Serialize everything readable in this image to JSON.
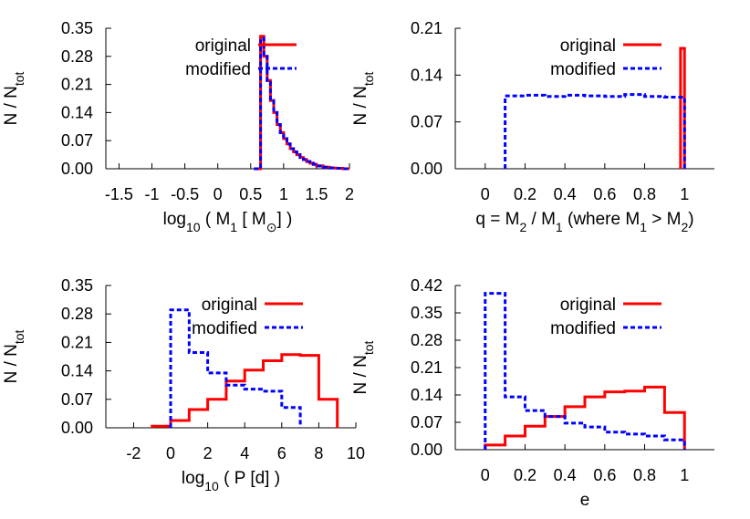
{
  "colors": {
    "original": "#ff0000",
    "modified": "#0000ff",
    "axis": "#000000"
  },
  "chart_data": [
    {
      "type": "histogram",
      "xlabel": {
        "base": "log",
        "sub": "10",
        "rest": " ( M",
        "sub2": "1",
        "rest2": " [ M",
        "sun": "⊙",
        "rest3": "] )"
      },
      "ylabel": {
        "base": "N / N",
        "sub": "tot"
      },
      "xlim": [
        -1.7,
        2.0
      ],
      "ylim": [
        0,
        0.35
      ],
      "xticks": [
        -1.5,
        -1,
        -0.5,
        0,
        0.5,
        1,
        1.5,
        2
      ],
      "xtick_labels": [
        "-1.5",
        "-1",
        "-0.5",
        "0",
        "0.5",
        "1",
        "1.5",
        "2"
      ],
      "yticks": [
        0,
        0.07,
        0.14,
        0.21,
        0.28,
        0.35
      ],
      "ytick_labels": [
        "0.00",
        "0.07",
        "0.14",
        "0.21",
        "0.28",
        "0.35"
      ],
      "legend": "top-right",
      "series": [
        {
          "name": "original",
          "dash": false,
          "edges": [
            0.55,
            0.65,
            0.7,
            0.75,
            0.8,
            0.85,
            0.9,
            0.95,
            1.0,
            1.05,
            1.1,
            1.15,
            1.2,
            1.25,
            1.3,
            1.35,
            1.4,
            1.45,
            1.5,
            1.6,
            1.7,
            1.8,
            1.9,
            2.0
          ],
          "values": [
            0.0,
            0.33,
            0.28,
            0.22,
            0.17,
            0.14,
            0.11,
            0.09,
            0.075,
            0.062,
            0.05,
            0.042,
            0.035,
            0.028,
            0.023,
            0.018,
            0.014,
            0.011,
            0.007,
            0.004,
            0.002,
            0.001,
            0.0
          ]
        },
        {
          "name": "modified",
          "dash": true,
          "edges": [
            0.55,
            0.65,
            0.7,
            0.75,
            0.8,
            0.85,
            0.9,
            0.95,
            1.0,
            1.05,
            1.1,
            1.15,
            1.2,
            1.25,
            1.3,
            1.35,
            1.4,
            1.45,
            1.5,
            1.6,
            1.7,
            1.8,
            1.9,
            2.0
          ],
          "values": [
            0.0,
            0.325,
            0.28,
            0.22,
            0.17,
            0.14,
            0.11,
            0.09,
            0.075,
            0.062,
            0.05,
            0.042,
            0.035,
            0.028,
            0.023,
            0.018,
            0.014,
            0.011,
            0.007,
            0.004,
            0.002,
            0.001,
            0.0
          ]
        }
      ]
    },
    {
      "type": "histogram",
      "xlabel": {
        "text": "q = M",
        "sub": "2",
        "rest": " / M",
        "sub2": "1",
        "rest2": " (where M",
        "sub3": "1",
        "rest3": " > M",
        "sub4": "2",
        "rest4": ")"
      },
      "ylabel": {
        "base": "N / N",
        "sub": "tot"
      },
      "xlim": [
        -0.15,
        1.15
      ],
      "ylim": [
        0,
        0.21
      ],
      "xticks": [
        0,
        0.2,
        0.4,
        0.6,
        0.8,
        1
      ],
      "xtick_labels": [
        "0",
        "0.2",
        "0.4",
        "0.6",
        "0.8",
        "1"
      ],
      "yticks": [
        0,
        0.07,
        0.14,
        0.21
      ],
      "ytick_labels": [
        "0.00",
        "0.07",
        "0.14",
        "0.21"
      ],
      "legend": "top-right",
      "series": [
        {
          "name": "original",
          "dash": false,
          "edges": [
            0.98,
            1.0
          ],
          "values": [
            0.18
          ]
        },
        {
          "name": "modified",
          "dash": true,
          "edges": [
            0.1,
            0.2,
            0.3,
            0.4,
            0.5,
            0.6,
            0.7,
            0.8,
            0.9,
            1.0
          ],
          "values": [
            0.109,
            0.11,
            0.108,
            0.11,
            0.109,
            0.108,
            0.111,
            0.108,
            0.107
          ]
        }
      ]
    },
    {
      "type": "histogram",
      "xlabel": {
        "base": "log",
        "sub": "10",
        "rest": " ( P [d] )"
      },
      "ylabel": {
        "base": "N / N",
        "sub": "tot"
      },
      "xlim": [
        -3.5,
        10
      ],
      "ylim": [
        0,
        0.35
      ],
      "xticks": [
        -2,
        0,
        2,
        4,
        6,
        8,
        10
      ],
      "xtick_labels": [
        "-2",
        "0",
        "2",
        "4",
        "6",
        "8",
        "10"
      ],
      "yticks": [
        0,
        0.07,
        0.14,
        0.21,
        0.28,
        0.35
      ],
      "ytick_labels": [
        "0.00",
        "0.07",
        "0.14",
        "0.21",
        "0.28",
        "0.35"
      ],
      "legend": "top-right",
      "series": [
        {
          "name": "original",
          "dash": false,
          "edges": [
            -1,
            0,
            1,
            2,
            3,
            4,
            5,
            6,
            7,
            8,
            9
          ],
          "values": [
            0.004,
            0.018,
            0.045,
            0.07,
            0.115,
            0.142,
            0.165,
            0.18,
            0.178,
            0.07
          ]
        },
        {
          "name": "modified",
          "dash": true,
          "edges": [
            0,
            1,
            2,
            3,
            4,
            5,
            6,
            7
          ],
          "values": [
            0.29,
            0.185,
            0.135,
            0.105,
            0.095,
            0.09,
            0.05
          ]
        }
      ]
    },
    {
      "type": "histogram",
      "xlabel": {
        "text": "e"
      },
      "ylabel": {
        "base": "N / N",
        "sub": "tot"
      },
      "xlim": [
        -0.15,
        1.15
      ],
      "ylim": [
        0,
        0.42
      ],
      "xticks": [
        0,
        0.2,
        0.4,
        0.6,
        0.8,
        1
      ],
      "xtick_labels": [
        "0",
        "0.2",
        "0.4",
        "0.6",
        "0.8",
        "1"
      ],
      "yticks": [
        0,
        0.07,
        0.14,
        0.21,
        0.28,
        0.35,
        0.42
      ],
      "ytick_labels": [
        "0.00",
        "0.07",
        "0.14",
        "0.21",
        "0.28",
        "0.35",
        "0.42"
      ],
      "legend": "top-right",
      "series": [
        {
          "name": "original",
          "dash": false,
          "edges": [
            0.0,
            0.1,
            0.2,
            0.3,
            0.4,
            0.5,
            0.6,
            0.7,
            0.8,
            0.9,
            1.0
          ],
          "values": [
            0.012,
            0.035,
            0.06,
            0.085,
            0.11,
            0.135,
            0.148,
            0.15,
            0.16,
            0.095
          ]
        },
        {
          "name": "modified",
          "dash": true,
          "edges": [
            0.0,
            0.1,
            0.2,
            0.3,
            0.4,
            0.5,
            0.6,
            0.7,
            0.8,
            0.9,
            1.0
          ],
          "values": [
            0.4,
            0.135,
            0.1,
            0.085,
            0.068,
            0.058,
            0.045,
            0.04,
            0.035,
            0.025
          ]
        }
      ]
    }
  ]
}
